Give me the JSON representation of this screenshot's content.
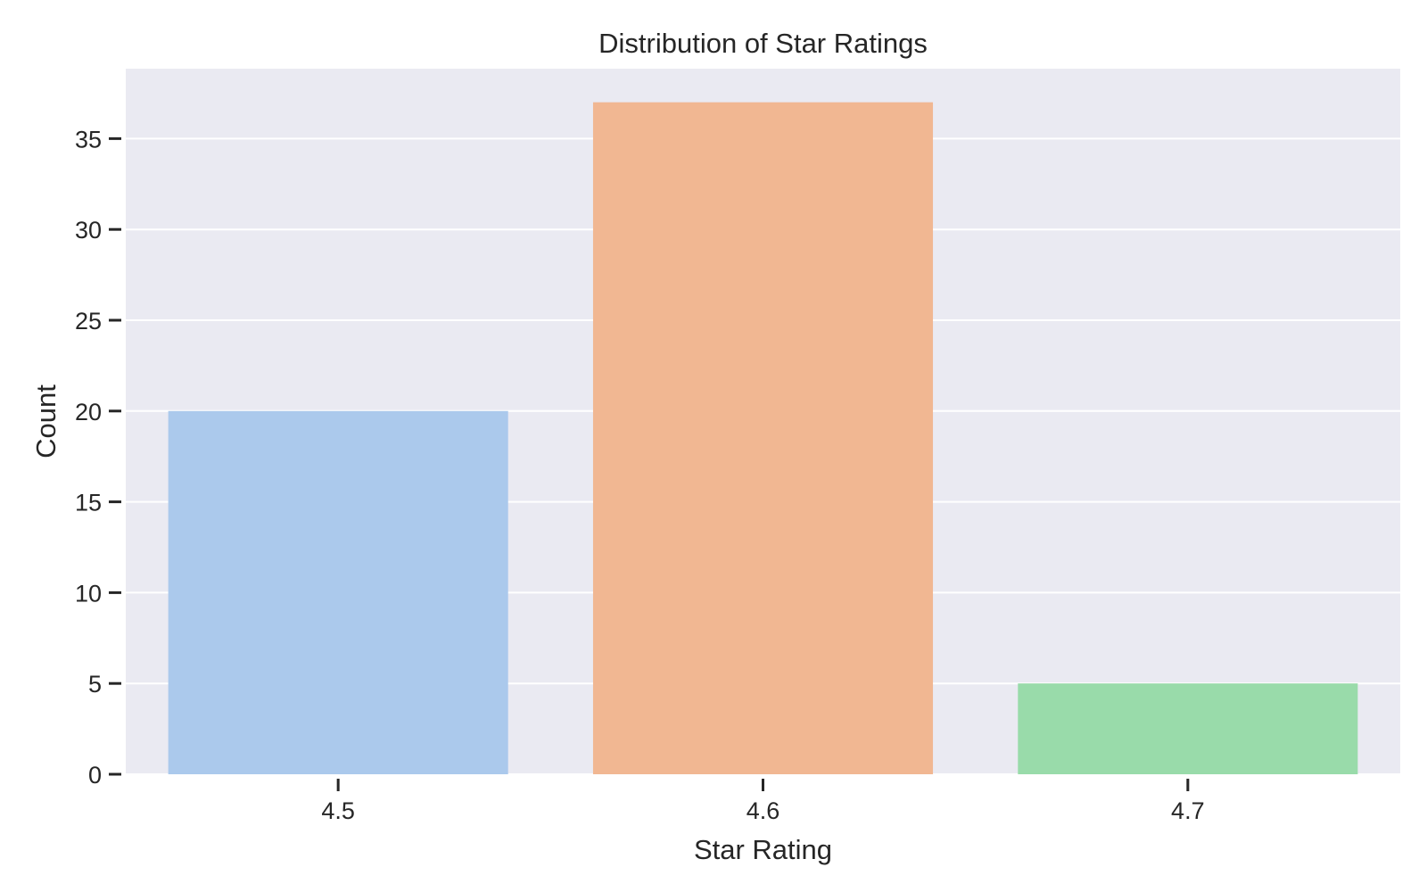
{
  "chart_data": {
    "type": "bar",
    "title": "Distribution of Star Ratings",
    "xlabel": "Star Rating",
    "ylabel": "Count",
    "categories": [
      "4.5",
      "4.6",
      "4.7"
    ],
    "values": [
      20,
      37,
      5
    ],
    "colors": [
      "#abc9ec",
      "#f1b792",
      "#99dbaa"
    ],
    "ylim": [
      0,
      38.85
    ],
    "yticks": [
      0,
      5,
      10,
      15,
      20,
      25,
      30,
      35
    ],
    "grid": true,
    "legend": "none",
    "style": {
      "plot_background": "#eaeaf2",
      "grid_color": "#ffffff",
      "text_color": "#262626"
    }
  }
}
